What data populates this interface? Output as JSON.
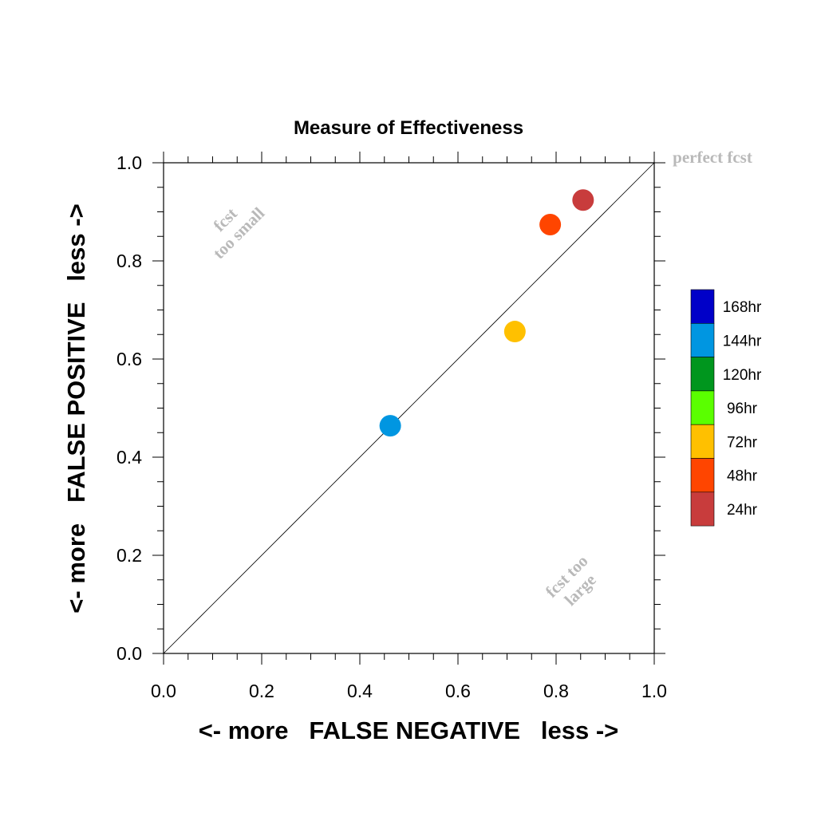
{
  "chart_data": {
    "type": "scatter",
    "title": "Measure of Effectiveness",
    "xlabel": "<- more   FALSE NEGATIVE   less ->",
    "ylabel": "<- more   FALSE POSITIVE   less ->",
    "xlim": [
      0.0,
      1.0
    ],
    "ylim": [
      0.0,
      1.0
    ],
    "xticks": [
      "0.0",
      "0.2",
      "0.4",
      "0.6",
      "0.8",
      "1.0"
    ],
    "yticks": [
      "0.0",
      "0.2",
      "0.4",
      "0.6",
      "0.8",
      "1.0"
    ],
    "grid": false,
    "diagonal_line": true,
    "annotations": {
      "perfect": "perfect fcst",
      "too_small": [
        "fcst",
        "too small"
      ],
      "too_large": [
        "fcst too",
        "large"
      ]
    },
    "legend": {
      "placement": "right",
      "entries": [
        {
          "label": "168hr",
          "color": "#0000c8"
        },
        {
          "label": "144hr",
          "color": "#0096e1"
        },
        {
          "label": "120hr",
          "color": "#00961e"
        },
        {
          "label": "96hr",
          "color": "#5aff00"
        },
        {
          "label": "72hr",
          "color": "#ffc000"
        },
        {
          "label": "48hr",
          "color": "#ff4500"
        },
        {
          "label": "24hr",
          "color": "#c83c3c"
        }
      ]
    },
    "series": [
      {
        "name": "144hr",
        "color": "#0096e1",
        "x": 0.462,
        "y": 0.464
      },
      {
        "name": "72hr",
        "color": "#ffc000",
        "x": 0.716,
        "y": 0.656
      },
      {
        "name": "48hr",
        "color": "#ff4500",
        "x": 0.788,
        "y": 0.874
      },
      {
        "name": "24hr",
        "color": "#c83c3c",
        "x": 0.855,
        "y": 0.924
      }
    ]
  }
}
